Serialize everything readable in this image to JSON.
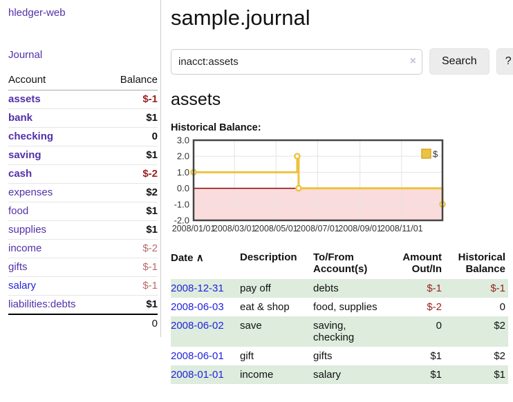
{
  "colors": {
    "link_purple": "#5230a8",
    "link_blue": "#2222dd",
    "negative_strong": "#992121",
    "negative_soft": "#bb6a6a",
    "row_green": "#ddecdd",
    "chart_line": "#edc240",
    "chart_marker_fill": "#ffffff",
    "chart_negative_fill": "#fbdcdc",
    "chart_zero_line": "#930000",
    "chart_grid": "#e3e3e3",
    "chart_border": "#454545"
  },
  "sidebar": {
    "brand": "hledger-web",
    "journal_link": "Journal",
    "accounts": {
      "header_account": "Account",
      "header_balance": "Balance",
      "rows": [
        {
          "name": "assets",
          "balance": "$-1",
          "depth": 1,
          "emphasis": true,
          "unvisited": false
        },
        {
          "name": "bank",
          "balance": "$1",
          "depth": 2,
          "emphasis": true,
          "unvisited": false
        },
        {
          "name": "checking",
          "balance": "0",
          "depth": 3,
          "emphasis": true,
          "unvisited": false
        },
        {
          "name": "saving",
          "balance": "$1",
          "depth": 3,
          "emphasis": true,
          "unvisited": false
        },
        {
          "name": "cash",
          "balance": "$-2",
          "depth": 2,
          "emphasis": true,
          "unvisited": false
        },
        {
          "name": "expenses",
          "balance": "$2",
          "depth": 1,
          "emphasis": false,
          "unvisited": false
        },
        {
          "name": "food",
          "balance": "$1",
          "depth": 2,
          "emphasis": false,
          "unvisited": false
        },
        {
          "name": "supplies",
          "balance": "$1",
          "depth": 2,
          "emphasis": false,
          "unvisited": false
        },
        {
          "name": "income",
          "balance": "$-2",
          "depth": 1,
          "emphasis": false,
          "unvisited": false
        },
        {
          "name": "gifts",
          "balance": "$-1",
          "depth": 2,
          "emphasis": false,
          "unvisited": false
        },
        {
          "name": "salary",
          "balance": "$-1",
          "depth": 2,
          "emphasis": false,
          "unvisited": true
        },
        {
          "name": "liabilities:debts",
          "balance": "$1",
          "depth": 1,
          "emphasis": false,
          "unvisited": false
        }
      ],
      "total": "0"
    }
  },
  "main": {
    "title": "sample.journal",
    "search": {
      "value": "inacct:assets",
      "clear_icon": "×",
      "button_label": "Search",
      "help_label": "?"
    },
    "heading": "assets",
    "chart_title": "Historical Balance:"
  },
  "chart_data": {
    "type": "line",
    "title": "Historical Balance",
    "step": true,
    "series": [
      {
        "name": "$",
        "points": [
          {
            "date": "2008-01-01",
            "value": 1
          },
          {
            "date": "2008-06-01",
            "value": 2
          },
          {
            "date": "2008-06-03",
            "value": 0
          },
          {
            "date": "2008-12-31",
            "value": -1
          }
        ]
      }
    ],
    "x_range": [
      "2008-01-01",
      "2008-12-31"
    ],
    "x_ticks": [
      "2008/01/01",
      "2008/03/01",
      "2008/05/01",
      "2008/07/01",
      "2008/09/01",
      "2008/11/01"
    ],
    "y_ticks": [
      3.0,
      2.0,
      1.0,
      0.0,
      -1.0,
      -2.0
    ],
    "ylim": [
      -2,
      3
    ],
    "grid": true,
    "legend": {
      "label": "$",
      "position": "top-right"
    },
    "negative_region_shaded": true
  },
  "register": {
    "headers": {
      "date": "Date",
      "sort_icon": "∧",
      "description": "Description",
      "accounts": "To/From Account(s)",
      "amount": "Amount Out/In",
      "balance": "Historical Balance"
    },
    "rows": [
      {
        "date": "2008-12-31",
        "description": "pay off",
        "accounts": "debts",
        "amount": "$-1",
        "balance": "$-1"
      },
      {
        "date": "2008-06-03",
        "description": "eat & shop",
        "accounts": "food, supplies",
        "amount": "$-2",
        "balance": "0"
      },
      {
        "date": "2008-06-02",
        "description": "save",
        "accounts": "saving, checking",
        "amount": "0",
        "balance": "$2"
      },
      {
        "date": "2008-06-01",
        "description": "gift",
        "accounts": "gifts",
        "amount": "$1",
        "balance": "$2"
      },
      {
        "date": "2008-01-01",
        "description": "income",
        "accounts": "salary",
        "amount": "$1",
        "balance": "$1"
      }
    ]
  }
}
